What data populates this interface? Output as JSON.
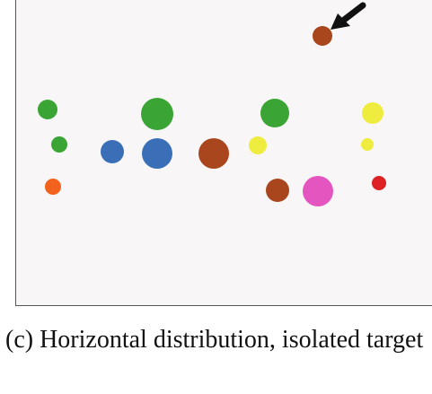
{
  "figure": {
    "circle_colors": {
      "green": "#3aa535",
      "orange": "#f2621c",
      "blue": "#3a6fb8",
      "brown": "#a9461e",
      "yellow": "#eeec3e",
      "pink": "#e455bf",
      "red": "#dd2124",
      "arrow": "#111111"
    },
    "arrow_icon": "arrow-pointing-to-target-icon"
  },
  "caption": {
    "text": "(c) Horizontal distribution, isolated target"
  }
}
